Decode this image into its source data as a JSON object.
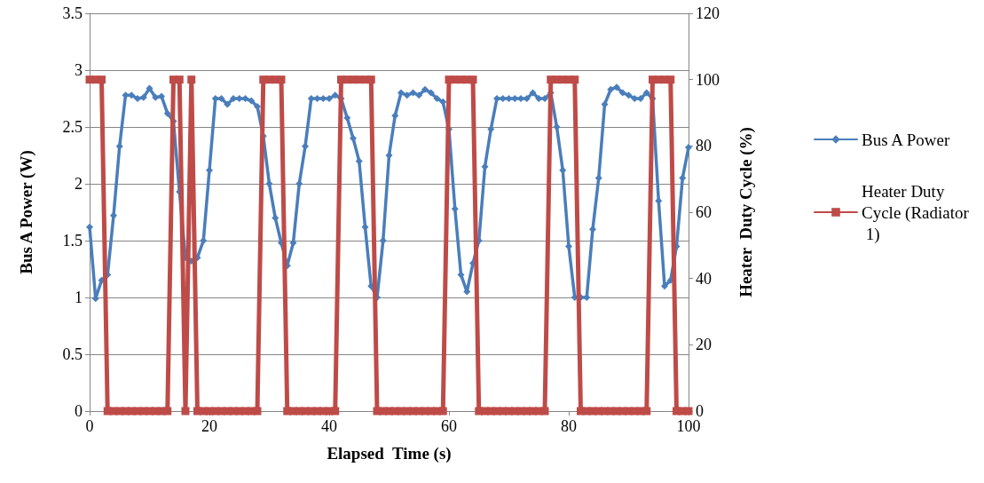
{
  "chart_data": {
    "type": "line",
    "xlabel": "Elapsed  Time (s)",
    "ylabel": "Bus A Power (W)",
    "y2label": "Heater  Duty Cycle (%)",
    "x": [
      0,
      1,
      2,
      3,
      4,
      5,
      6,
      7,
      8,
      9,
      10,
      11,
      12,
      13,
      14,
      15,
      16,
      17,
      18,
      19,
      20,
      21,
      22,
      23,
      24,
      25,
      26,
      27,
      28,
      29,
      30,
      31,
      32,
      33,
      34,
      35,
      36,
      37,
      38,
      39,
      40,
      41,
      42,
      43,
      44,
      45,
      46,
      47,
      48,
      49,
      50,
      51,
      52,
      53,
      54,
      55,
      56,
      57,
      58,
      59,
      60,
      61,
      62,
      63,
      64,
      65,
      66,
      67,
      68,
      69,
      70,
      71,
      72,
      73,
      74,
      75,
      76,
      77,
      78,
      79,
      80,
      81,
      82,
      83,
      84,
      85,
      86,
      87,
      88,
      89,
      90,
      91,
      92,
      93,
      94,
      95,
      96,
      97,
      98,
      99,
      100
    ],
    "series": [
      {
        "name": "Bus A Power",
        "color": "#4a7ebb",
        "marker": "diamond",
        "values": [
          1.62,
          0.99,
          1.15,
          1.2,
          1.72,
          2.33,
          2.78,
          2.78,
          2.75,
          2.76,
          2.84,
          2.76,
          2.77,
          2.62,
          2.55,
          1.93,
          1.35,
          1.32,
          1.35,
          1.5,
          2.12,
          2.75,
          2.75,
          2.7,
          2.75,
          2.75,
          2.75,
          2.73,
          2.68,
          2.42,
          2.0,
          1.7,
          1.48,
          1.28,
          1.48,
          2.0,
          2.33,
          2.75,
          2.75,
          2.75,
          2.75,
          2.78,
          2.75,
          2.58,
          2.4,
          2.2,
          1.62,
          1.1,
          1.0,
          1.5,
          2.25,
          2.6,
          2.8,
          2.78,
          2.8,
          2.78,
          2.83,
          2.8,
          2.75,
          2.72,
          2.48,
          1.78,
          1.2,
          1.05,
          1.3,
          1.5,
          2.15,
          2.48,
          2.75,
          2.75,
          2.75,
          2.75,
          2.75,
          2.75,
          2.8,
          2.75,
          2.75,
          2.8,
          2.5,
          2.12,
          1.45,
          1.0,
          1.0,
          1.0,
          1.6,
          2.05,
          2.7,
          2.83,
          2.85,
          2.8,
          2.78,
          2.75,
          2.75,
          2.8,
          2.75,
          1.85,
          1.1,
          1.15,
          1.45,
          2.05,
          2.32
        ]
      },
      {
        "name": "Heater Duty Cycle (Radiator 1)",
        "color": "#be4b48",
        "marker": "square",
        "axis": "y2",
        "values": [
          100,
          100,
          100,
          0,
          0,
          0,
          0,
          0,
          0,
          0,
          0,
          0,
          0,
          0,
          100,
          100,
          0,
          100,
          0,
          0,
          0,
          0,
          0,
          0,
          0,
          0,
          0,
          0,
          0,
          100,
          100,
          100,
          100,
          0,
          0,
          0,
          0,
          0,
          0,
          0,
          0,
          0,
          100,
          100,
          100,
          100,
          100,
          100,
          0,
          0,
          0,
          0,
          0,
          0,
          0,
          0,
          0,
          0,
          0,
          0,
          100,
          100,
          100,
          100,
          100,
          0,
          0,
          0,
          0,
          0,
          0,
          0,
          0,
          0,
          0,
          0,
          0,
          100,
          100,
          100,
          100,
          100,
          0,
          0,
          0,
          0,
          0,
          0,
          0,
          0,
          0,
          0,
          0,
          0,
          100,
          100,
          100,
          100,
          0,
          0,
          0
        ]
      }
    ],
    "xlim": [
      0,
      100
    ],
    "xticks": [
      0,
      20,
      40,
      60,
      80,
      100
    ],
    "ylim": [
      0,
      3.5
    ],
    "yticks": [
      0,
      0.5,
      1,
      1.5,
      2,
      2.5,
      3,
      3.5
    ],
    "y2lim": [
      0,
      120
    ],
    "y2ticks": [
      0,
      20,
      40,
      60,
      80,
      100,
      120
    ],
    "grid": "y",
    "legend": "right",
    "line_style": "solid"
  }
}
